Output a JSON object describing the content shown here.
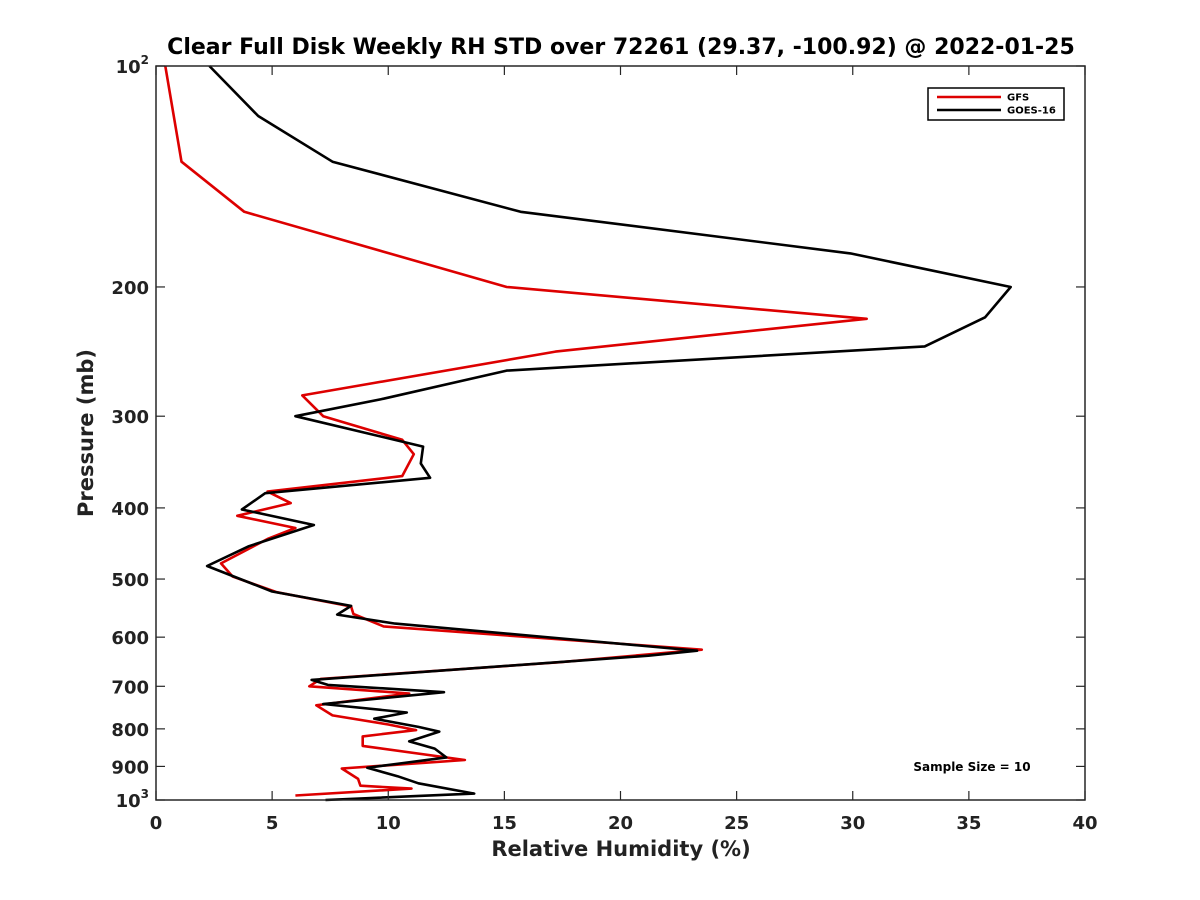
{
  "chart_data": {
    "type": "line",
    "title": "Clear Full Disk Weekly RH STD over 72261 (29.37, -100.92) @ 2022-01-25",
    "xlabel": "Relative Humidity (%)",
    "ylabel": "Pressure (mb)",
    "xlim": [
      0,
      40
    ],
    "ylim": [
      100,
      1000
    ],
    "y_scale": "log",
    "y_reversed": true,
    "x_ticks": [
      0,
      5,
      10,
      15,
      20,
      25,
      30,
      35,
      40
    ],
    "x_tick_labels": [
      "0",
      "5",
      "10",
      "15",
      "20",
      "25",
      "30",
      "35",
      "40"
    ],
    "y_ticks": [
      {
        "value": 100,
        "base": "10",
        "exp": "2"
      },
      {
        "value": 200,
        "label": "200"
      },
      {
        "value": 300,
        "label": "300"
      },
      {
        "value": 400,
        "label": "400"
      },
      {
        "value": 500,
        "label": "500"
      },
      {
        "value": 600,
        "label": "600"
      },
      {
        "value": 700,
        "label": "700"
      },
      {
        "value": 800,
        "label": "800"
      },
      {
        "value": 900,
        "label": "900"
      },
      {
        "value": 1000,
        "base": "10",
        "exp": "3"
      }
    ],
    "grid": false,
    "legend_position": "top-right",
    "annotation": "Sample Size = 10",
    "series": [
      {
        "name": "GFS",
        "color": "#dd0000",
        "points": [
          [
            0.4,
            100
          ],
          [
            1.1,
            135
          ],
          [
            3.8,
            158
          ],
          [
            15.1,
            200
          ],
          [
            30.6,
            221
          ],
          [
            17.2,
            245
          ],
          [
            6.3,
            281
          ],
          [
            7.2,
            300
          ],
          [
            10.6,
            323
          ],
          [
            11.1,
            338
          ],
          [
            10.6,
            362
          ],
          [
            4.8,
            380
          ],
          [
            5.8,
            394
          ],
          [
            3.5,
            410
          ],
          [
            6.0,
            426
          ],
          [
            4.8,
            441
          ],
          [
            2.8,
            476
          ],
          [
            3.3,
            496
          ],
          [
            5.2,
            521
          ],
          [
            8.4,
            545
          ],
          [
            8.5,
            558
          ],
          [
            9.8,
            580
          ],
          [
            23.5,
            624
          ],
          [
            17.4,
            649
          ],
          [
            7.1,
            684
          ],
          [
            6.6,
            700
          ],
          [
            10.9,
            716
          ],
          [
            6.9,
            743
          ],
          [
            7.6,
            767
          ],
          [
            10.0,
            789
          ],
          [
            11.2,
            803
          ],
          [
            8.9,
            819
          ],
          [
            8.9,
            844
          ],
          [
            13.3,
            882
          ],
          [
            8.0,
            906
          ],
          [
            8.7,
            936
          ],
          [
            8.8,
            956
          ],
          [
            11.0,
            965
          ],
          [
            6.0,
            986
          ]
        ]
      },
      {
        "name": "GOES-16",
        "color": "#000000",
        "points": [
          [
            2.3,
            100
          ],
          [
            4.4,
            117
          ],
          [
            7.6,
            135
          ],
          [
            15.7,
            158
          ],
          [
            29.9,
            180
          ],
          [
            36.8,
            200
          ],
          [
            35.7,
            220
          ],
          [
            33.1,
            241
          ],
          [
            15.1,
            260
          ],
          [
            9.8,
            284
          ],
          [
            6.0,
            300
          ],
          [
            11.5,
            330
          ],
          [
            11.4,
            348
          ],
          [
            11.8,
            364
          ],
          [
            4.7,
            382
          ],
          [
            3.7,
            402
          ],
          [
            6.8,
            422
          ],
          [
            4.0,
            451
          ],
          [
            2.2,
            480
          ],
          [
            5.0,
            520
          ],
          [
            8.4,
            544
          ],
          [
            7.8,
            559
          ],
          [
            10.3,
            575
          ],
          [
            23.3,
            626
          ],
          [
            21.2,
            636
          ],
          [
            6.7,
            686
          ],
          [
            7.4,
            697
          ],
          [
            12.4,
            713
          ],
          [
            7.2,
            740
          ],
          [
            10.8,
            760
          ],
          [
            9.4,
            775
          ],
          [
            11.3,
            795
          ],
          [
            12.2,
            807
          ],
          [
            10.9,
            832
          ],
          [
            12.0,
            851
          ],
          [
            12.5,
            875
          ],
          [
            9.1,
            904
          ],
          [
            10.4,
            928
          ],
          [
            11.3,
            949
          ],
          [
            13.7,
            980
          ],
          [
            7.3,
            1000
          ]
        ]
      }
    ]
  }
}
